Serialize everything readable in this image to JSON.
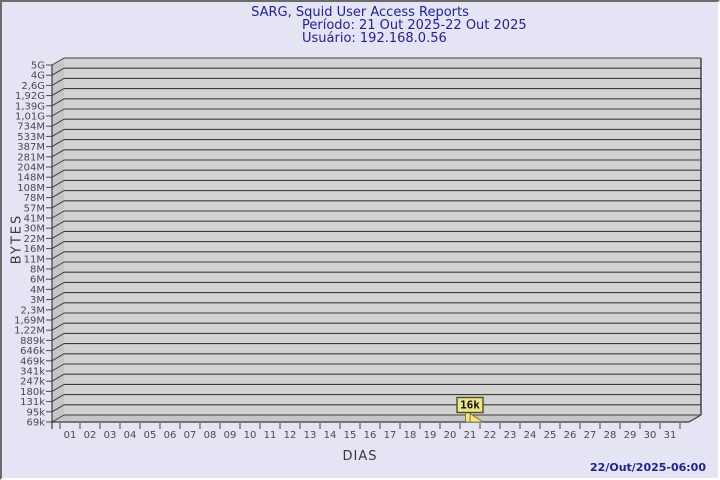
{
  "title": {
    "line1": "SARG, Squid User Access Reports",
    "line2": "Período: 21 Out 2025-22 Out 2025",
    "line3": "Usuário: 192.168.0.56"
  },
  "footer": {
    "timestamp": "22/Out/2025-06:00"
  },
  "chart_data": {
    "type": "bar",
    "title": "SARG, Squid User Access Reports",
    "subtitle": [
      "Período: 21 Out 2025-22 Out 2025",
      "Usuário: 192.168.0.56"
    ],
    "xlabel": "DIAS",
    "ylabel": "BYTES",
    "y_scale": "log",
    "ylim": [
      "69k",
      "5G"
    ],
    "grid": true,
    "legend": false,
    "y_axis_ticks": [
      "5G",
      "4G",
      "2,6G",
      "1,92G",
      "1,39G",
      "1,01G",
      "734M",
      "533M",
      "387M",
      "281M",
      "204M",
      "148M",
      "108M",
      "78M",
      "57M",
      "41M",
      "30M",
      "22M",
      "16M",
      "11M",
      "8M",
      "6M",
      "4M",
      "3M",
      "2,3M",
      "1,69M",
      "1,22M",
      "889k",
      "646k",
      "469k",
      "341k",
      "247k",
      "180k",
      "131k",
      "95k",
      "69k"
    ],
    "categories": [
      "01",
      "02",
      "03",
      "04",
      "05",
      "06",
      "07",
      "08",
      "09",
      "10",
      "11",
      "12",
      "13",
      "14",
      "15",
      "16",
      "17",
      "18",
      "19",
      "20",
      "21",
      "22",
      "23",
      "24",
      "25",
      "26",
      "27",
      "28",
      "29",
      "30",
      "31"
    ],
    "values": [
      null,
      null,
      null,
      null,
      null,
      null,
      null,
      null,
      null,
      null,
      null,
      null,
      null,
      null,
      null,
      null,
      null,
      null,
      null,
      null,
      16000,
      null,
      null,
      null,
      null,
      null,
      null,
      null,
      null,
      null,
      null
    ],
    "points": [
      {
        "day": "21",
        "value_label": "16k",
        "value_bytes": 16000
      }
    ]
  },
  "marker": {
    "day": "21",
    "label": "16k"
  },
  "colors": {
    "background": "#e4e4f4",
    "title_text": "#22228e",
    "timestamp_text": "#22228e",
    "wall_face": "#d2d2d2",
    "wall_side": "#c6c6c6",
    "gridline": "#3c3c3c",
    "axis_text": "#4a4a4a",
    "bar_yellow": "#f7e27c",
    "bar_edge": "#6e6e2e",
    "flag_fill": "#ede391",
    "flag_edge": "#4f4f1d",
    "flag_text": "#111111"
  }
}
